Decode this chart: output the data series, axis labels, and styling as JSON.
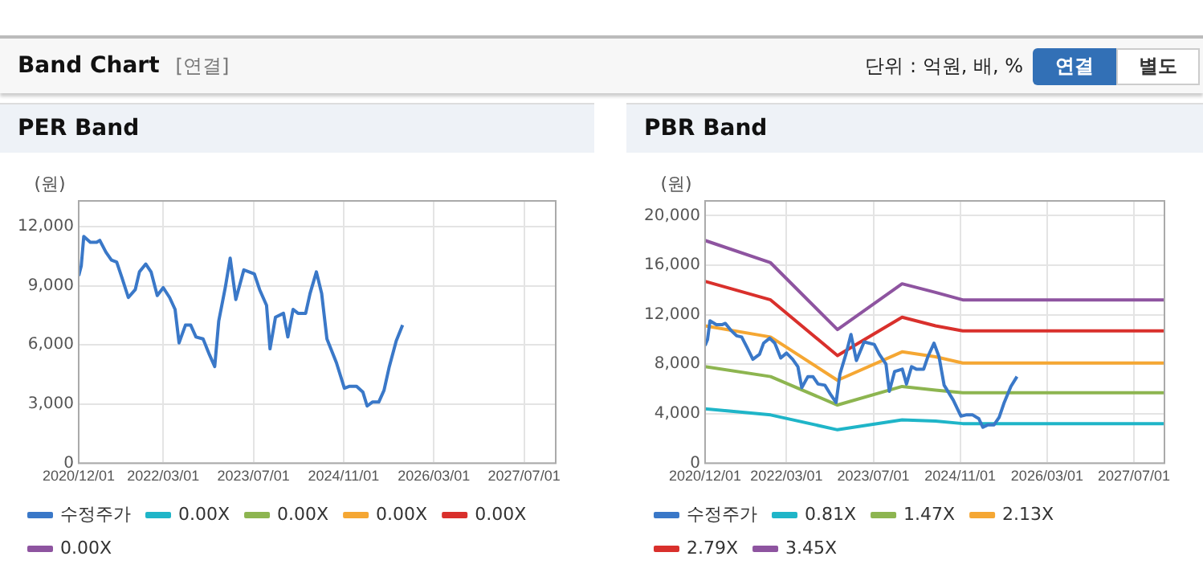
{
  "chart_data": [
    {
      "type": "line",
      "title": "PER Band",
      "ylabel": "(원)",
      "annotations": [
        "Band Chart",
        "[연결]",
        "단위 : 억원, 배, %",
        "연결",
        "별도"
      ],
      "xlim": [
        "2020-12-01",
        "2027-12-20"
      ],
      "xticks": [
        {
          "value": "2020-12-01",
          "label": "2020/12/01"
        },
        {
          "value": "2022-03-01",
          "label": "2022/03/01"
        },
        {
          "value": "2023-07-01",
          "label": "2023/07/01"
        },
        {
          "value": "2024-11-01",
          "label": "2024/11/01"
        },
        {
          "value": "2026-03-01",
          "label": "2026/03/01"
        },
        {
          "value": "2027-07-01",
          "label": "2027/07/01"
        }
      ],
      "ylim": [
        0,
        13300
      ],
      "yticks": [
        {
          "value": 0,
          "label": "0"
        },
        {
          "value": 3000,
          "label": "3,000"
        },
        {
          "value": 6000,
          "label": "6,000"
        },
        {
          "value": 9000,
          "label": "9,000"
        },
        {
          "value": 12000,
          "label": "12,000"
        }
      ],
      "grid": true,
      "legend": "bottom",
      "marker": "none",
      "series": [
        {
          "name": "수정주가",
          "color": "#3a78c8",
          "x": [
            "2020-12-01",
            "2020-12-15",
            "2020-12-29",
            "2021-02-03",
            "2021-03-07",
            "2021-03-24",
            "2021-04-27",
            "2021-05-26",
            "2021-06-24",
            "2021-07-22",
            "2021-08-26",
            "2021-10-02",
            "2021-10-25",
            "2021-11-29",
            "2021-12-27",
            "2022-01-30",
            "2022-03-01",
            "2022-04-05",
            "2022-05-04",
            "2022-05-26",
            "2022-06-30",
            "2022-07-28",
            "2022-08-26",
            "2022-10-03",
            "2022-11-07",
            "2022-12-05",
            "2022-12-27",
            "2023-02-01",
            "2023-02-28",
            "2023-03-28",
            "2023-05-10",
            "2023-07-06",
            "2023-08-04",
            "2023-09-11",
            "2023-09-30",
            "2023-10-29",
            "2023-12-11",
            "2024-01-04",
            "2024-02-02",
            "2024-02-29",
            "2024-04-09",
            "2024-05-02",
            "2024-06-06",
            "2024-07-04",
            "2024-08-02",
            "2024-09-23",
            "2024-11-05",
            "2024-12-03",
            "2025-01-10",
            "2025-02-14",
            "2025-03-06",
            "2025-04-04",
            "2025-05-08",
            "2025-06-06",
            "2025-07-04",
            "2025-08-11",
            "2025-09-15"
          ],
          "values": [
            9500,
            10000,
            11500,
            11200,
            11200,
            11300,
            10700,
            10300,
            10200,
            9400,
            8400,
            8800,
            9700,
            10100,
            9700,
            8500,
            8900,
            8400,
            7800,
            6100,
            7000,
            7000,
            6400,
            6300,
            5500,
            4900,
            7200,
            8900,
            10400,
            8300,
            9800,
            9600,
            8800,
            8000,
            5800,
            7400,
            7600,
            6400,
            7800,
            7600,
            7600,
            8600,
            9700,
            8600,
            6300,
            5100,
            3800,
            3900,
            3900,
            3600,
            2900,
            3100,
            3100,
            3700,
            4900,
            6200,
            7000
          ]
        },
        {
          "name": "0.00X",
          "color": "#1fb5c8"
        },
        {
          "name": "0.00X",
          "color": "#8db550"
        },
        {
          "name": "0.00X",
          "color": "#f5a733"
        },
        {
          "name": "0.00X",
          "color": "#d9302c"
        },
        {
          "name": "0.00X",
          "color": "#8e54a0"
        }
      ]
    },
    {
      "type": "line",
      "title": "PBR Band",
      "ylabel": "(원)",
      "xlim": [
        "2020-12-01",
        "2027-12-20"
      ],
      "xticks": [
        {
          "value": "2020-12-01",
          "label": "2020/12/01"
        },
        {
          "value": "2022-03-01",
          "label": "2022/03/01"
        },
        {
          "value": "2023-07-01",
          "label": "2023/07/01"
        },
        {
          "value": "2024-11-01",
          "label": "2024/11/01"
        },
        {
          "value": "2026-03-01",
          "label": "2026/03/01"
        },
        {
          "value": "2027-07-01",
          "label": "2027/07/01"
        }
      ],
      "ylim": [
        0,
        21200
      ],
      "yticks": [
        {
          "value": 0,
          "label": "0"
        },
        {
          "value": 4000,
          "label": "4,000"
        },
        {
          "value": 8000,
          "label": "8,000"
        },
        {
          "value": 12000,
          "label": "12,000"
        },
        {
          "value": 16000,
          "label": "16,000"
        },
        {
          "value": 20000,
          "label": "20,000"
        }
      ],
      "grid": true,
      "legend": "bottom",
      "marker": "none",
      "series": [
        {
          "name": "수정주가",
          "color": "#3a78c8",
          "x": [
            "2020-12-01",
            "2020-12-15",
            "2020-12-29",
            "2021-02-03",
            "2021-03-07",
            "2021-03-24",
            "2021-04-27",
            "2021-05-26",
            "2021-06-24",
            "2021-07-22",
            "2021-08-26",
            "2021-10-02",
            "2021-10-25",
            "2021-11-29",
            "2021-12-27",
            "2022-01-30",
            "2022-03-01",
            "2022-04-05",
            "2022-05-04",
            "2022-05-26",
            "2022-06-30",
            "2022-07-28",
            "2022-08-26",
            "2022-10-03",
            "2022-11-07",
            "2022-12-05",
            "2022-12-27",
            "2023-02-01",
            "2023-02-28",
            "2023-03-28",
            "2023-05-10",
            "2023-07-06",
            "2023-08-04",
            "2023-09-11",
            "2023-09-30",
            "2023-10-29",
            "2023-12-11",
            "2024-01-04",
            "2024-02-02",
            "2024-02-29",
            "2024-04-09",
            "2024-05-02",
            "2024-06-06",
            "2024-07-04",
            "2024-08-02",
            "2024-09-23",
            "2024-11-05",
            "2024-12-03",
            "2025-01-10",
            "2025-02-14",
            "2025-03-06",
            "2025-04-04",
            "2025-05-08",
            "2025-06-06",
            "2025-07-04",
            "2025-08-11",
            "2025-09-15"
          ],
          "values": [
            9500,
            10000,
            11500,
            11200,
            11200,
            11300,
            10700,
            10300,
            10200,
            9400,
            8400,
            8800,
            9700,
            10100,
            9700,
            8500,
            8900,
            8400,
            7800,
            6100,
            7000,
            7000,
            6400,
            6300,
            5500,
            4900,
            7200,
            8900,
            10400,
            8300,
            9800,
            9600,
            8800,
            8000,
            5800,
            7400,
            7600,
            6400,
            7800,
            7600,
            7600,
            8600,
            9700,
            8600,
            6300,
            5100,
            3800,
            3900,
            3900,
            3600,
            2900,
            3100,
            3100,
            3700,
            4900,
            6200,
            7000
          ]
        },
        {
          "name": "0.81X",
          "color": "#1fb5c8",
          "x": [
            "2020-12-01",
            "2021-12-03",
            "2022-12-13",
            "2023-12-10",
            "2024-06-15",
            "2024-11-15",
            "2027-12-20"
          ],
          "values": [
            4400,
            3900,
            2700,
            3500,
            3400,
            3200,
            3200
          ]
        },
        {
          "name": "1.47X",
          "color": "#8db550",
          "x": [
            "2020-12-01",
            "2021-12-03",
            "2022-12-13",
            "2023-12-10",
            "2024-06-15",
            "2024-11-15",
            "2027-12-20"
          ],
          "values": [
            7800,
            7000,
            4700,
            6200,
            5900,
            5700,
            5700
          ]
        },
        {
          "name": "2.13X",
          "color": "#f5a733",
          "x": [
            "2020-12-01",
            "2021-12-03",
            "2022-12-13",
            "2023-12-10",
            "2024-06-15",
            "2024-11-15",
            "2027-12-20"
          ],
          "values": [
            11100,
            10200,
            6700,
            9000,
            8600,
            8100,
            8100
          ]
        },
        {
          "name": "2.79X",
          "color": "#d9302c",
          "x": [
            "2020-12-01",
            "2021-12-03",
            "2022-12-13",
            "2023-12-10",
            "2024-06-15",
            "2024-11-15",
            "2027-12-20"
          ],
          "values": [
            14700,
            13200,
            8700,
            11800,
            11100,
            10700,
            10700
          ]
        },
        {
          "name": "3.45X",
          "color": "#8e54a0",
          "x": [
            "2020-12-01",
            "2021-12-03",
            "2022-12-13",
            "2023-12-10",
            "2024-06-15",
            "2024-11-15",
            "2027-12-20"
          ],
          "values": [
            18000,
            16200,
            10800,
            14500,
            13800,
            13200,
            13200
          ]
        }
      ]
    }
  ]
}
